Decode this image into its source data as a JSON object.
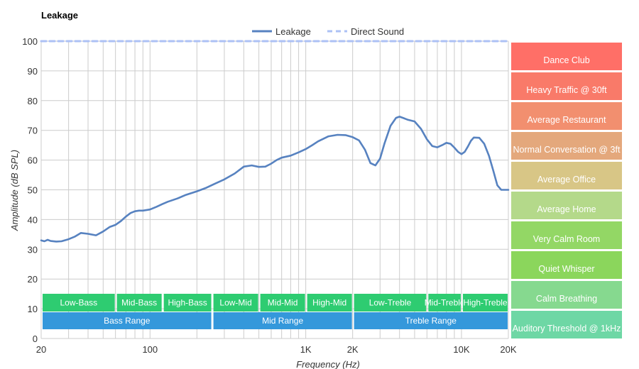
{
  "chart_data": {
    "type": "line",
    "title": "Leakage",
    "xlabel": "Frequency (Hz)",
    "ylabel": "Amplitude (dB SPL)",
    "x_scale": "log",
    "xlim": [
      20,
      20000
    ],
    "ylim": [
      0,
      100
    ],
    "grid": true,
    "legend_position": "top-center",
    "x_tick_labels": [
      {
        "value": 20,
        "label": "20"
      },
      {
        "value": 100,
        "label": "100"
      },
      {
        "value": 1000,
        "label": "1K"
      },
      {
        "value": 2000,
        "label": "2K"
      },
      {
        "value": 10000,
        "label": "10K"
      },
      {
        "value": 20000,
        "label": "20K"
      }
    ],
    "x_gridlines": [
      20,
      30,
      40,
      50,
      60,
      70,
      80,
      90,
      100,
      200,
      300,
      400,
      500,
      600,
      700,
      800,
      900,
      1000,
      2000,
      3000,
      4000,
      5000,
      6000,
      7000,
      8000,
      9000,
      10000,
      20000
    ],
    "y_ticks": [
      0,
      10,
      20,
      30,
      40,
      50,
      60,
      70,
      80,
      90,
      100
    ],
    "series": [
      {
        "name": "Leakage",
        "color": "#5782c0",
        "style": "solid",
        "x": [
          20,
          21,
          22,
          23,
          25,
          27,
          30,
          33,
          36,
          40,
          45,
          50,
          55,
          60,
          65,
          70,
          75,
          80,
          85,
          90,
          100,
          110,
          120,
          130,
          150,
          170,
          200,
          230,
          260,
          300,
          350,
          400,
          450,
          500,
          550,
          600,
          650,
          700,
          800,
          900,
          1000,
          1100,
          1200,
          1400,
          1600,
          1800,
          2000,
          2200,
          2400,
          2600,
          2800,
          3000,
          3200,
          3500,
          3800,
          4000,
          4300,
          4500,
          5000,
          5500,
          6000,
          6500,
          7000,
          7500,
          8000,
          8500,
          9000,
          9500,
          10000,
          10500,
          11000,
          11500,
          12000,
          13000,
          14000,
          15000,
          16000,
          17000,
          18000,
          19000,
          20000
        ],
        "values": [
          33.0,
          32.7,
          33.2,
          32.8,
          32.6,
          32.7,
          33.4,
          34.3,
          35.5,
          35.2,
          34.7,
          36.0,
          37.5,
          38.2,
          39.5,
          41.0,
          42.2,
          42.8,
          43.0,
          43.0,
          43.4,
          44.3,
          45.2,
          46.0,
          47.1,
          48.3,
          49.5,
          50.7,
          52.0,
          53.5,
          55.5,
          57.8,
          58.2,
          57.7,
          57.8,
          58.8,
          60.0,
          60.8,
          61.5,
          62.6,
          63.7,
          65.0,
          66.3,
          68.0,
          68.5,
          68.4,
          67.7,
          66.6,
          63.5,
          59.0,
          58.2,
          60.5,
          65.5,
          71.5,
          74.2,
          74.6,
          74.0,
          73.6,
          73.0,
          70.5,
          67.0,
          64.7,
          64.3,
          65.0,
          65.8,
          65.5,
          64.2,
          62.8,
          62.0,
          62.8,
          64.6,
          66.5,
          67.6,
          67.5,
          65.5,
          61.5,
          56.5,
          51.5,
          50.0,
          50.0,
          50.0
        ]
      },
      {
        "name": "Direct Sound",
        "color": "#adc1f5",
        "style": "dashed",
        "x": [
          20,
          20000
        ],
        "values": [
          100,
          100
        ]
      }
    ],
    "range_bands": {
      "row1": [
        {
          "label": "Low-Bass",
          "from": 20,
          "to": 60
        },
        {
          "label": "Mid-Bass",
          "from": 60,
          "to": 120
        },
        {
          "label": "High-Bass",
          "from": 120,
          "to": 250
        },
        {
          "label": "Low-Mid",
          "from": 250,
          "to": 500
        },
        {
          "label": "Mid-Mid",
          "from": 500,
          "to": 1000
        },
        {
          "label": "High-Mid",
          "from": 1000,
          "to": 2000
        },
        {
          "label": "Low-Treble",
          "from": 2000,
          "to": 6000
        },
        {
          "label": "Mid-Treble",
          "from": 6000,
          "to": 10000
        },
        {
          "label": "High-Treble",
          "from": 10000,
          "to": 20000
        }
      ],
      "row2": [
        {
          "label": "Bass Range",
          "from": 20,
          "to": 250
        },
        {
          "label": "Mid Range",
          "from": 250,
          "to": 2000
        },
        {
          "label": "Treble Range",
          "from": 2000,
          "to": 20000
        }
      ],
      "row1_color": "#2ecc71",
      "row2_color": "#3498db"
    },
    "reference_levels": [
      {
        "label": "Dance Club",
        "color": "#ff6f67"
      },
      {
        "label": "Heavy Traffic @ 30ft",
        "color": "#f97a69"
      },
      {
        "label": "Average Restaurant",
        "color": "#f28f6f"
      },
      {
        "label": "Normal Conversation @ 3ft",
        "color": "#e4a87c"
      },
      {
        "label": "Average Office",
        "color": "#d8c686"
      },
      {
        "label": "Average Home",
        "color": "#b4d98a"
      },
      {
        "label": "Very Calm Room",
        "color": "#93d765"
      },
      {
        "label": "Quiet Whisper",
        "color": "#8bd65c"
      },
      {
        "label": "Calm Breathing",
        "color": "#86d98f"
      },
      {
        "label": "Auditory Threshold @ 1kHz",
        "color": "#6ed7a5"
      }
    ]
  }
}
